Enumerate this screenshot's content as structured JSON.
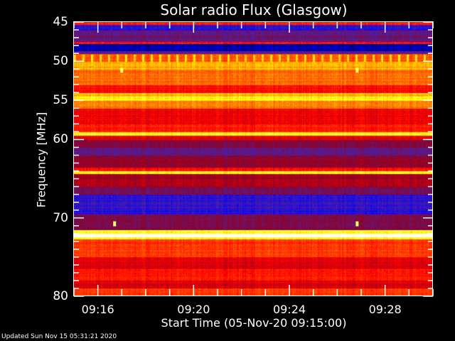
{
  "chart_data": {
    "type": "heatmap",
    "title": "Solar radio Flux (Glasgow)",
    "xlabel": "Start Time (05-Nov-20 09:15:00)",
    "ylabel": "Frequency [MHz]",
    "x_range": [
      "09:15:00",
      "09:30:00"
    ],
    "ylim": [
      45,
      80
    ],
    "y_inverted": true,
    "x_ticks": [
      "09:16",
      "09:20",
      "09:24",
      "09:28"
    ],
    "y_ticks": [
      45,
      50,
      55,
      60,
      70,
      80
    ],
    "colormap": [
      "#000040",
      "#0000ff",
      "#5020a0",
      "#900020",
      "#ff0000",
      "#ff7000",
      "#ffff00",
      "#ffffff"
    ],
    "frequency_profile": [
      [
        45.0,
        45.3,
        0.6
      ],
      [
        45.3,
        46.0,
        0.22
      ],
      [
        46.0,
        47.5,
        0.33
      ],
      [
        47.5,
        47.8,
        0.58
      ],
      [
        47.8,
        48.7,
        0.08
      ],
      [
        48.7,
        49.0,
        0.3
      ],
      [
        49.0,
        50.0,
        0.68
      ],
      [
        50.0,
        51.0,
        0.78
      ],
      [
        51.0,
        53.0,
        0.7
      ],
      [
        53.0,
        54.0,
        0.58
      ],
      [
        54.0,
        54.5,
        0.78
      ],
      [
        54.5,
        55.0,
        0.86
      ],
      [
        55.0,
        56.0,
        0.72
      ],
      [
        56.0,
        58.0,
        0.55
      ],
      [
        58.0,
        59.0,
        0.6
      ],
      [
        59.0,
        59.5,
        0.86
      ],
      [
        59.5,
        60.0,
        0.55
      ],
      [
        60.0,
        61.0,
        0.4
      ],
      [
        61.0,
        62.0,
        0.32
      ],
      [
        62.0,
        63.5,
        0.42
      ],
      [
        63.5,
        64.0,
        0.58
      ],
      [
        64.0,
        64.4,
        0.86
      ],
      [
        64.4,
        66.0,
        0.45
      ],
      [
        66.0,
        67.0,
        0.36
      ],
      [
        67.0,
        69.5,
        0.22
      ],
      [
        69.5,
        71.5,
        0.38
      ],
      [
        71.5,
        72.0,
        0.86
      ],
      [
        72.0,
        72.4,
        1.0
      ],
      [
        72.4,
        72.7,
        0.85
      ],
      [
        72.7,
        75.0,
        0.64
      ],
      [
        75.0,
        76.5,
        0.52
      ],
      [
        76.5,
        78.0,
        0.6
      ],
      [
        78.0,
        79.0,
        0.52
      ],
      [
        79.0,
        80.0,
        0.64
      ]
    ],
    "bursts": [
      {
        "time": "09:17:00",
        "freq": 51.2
      },
      {
        "time": "09:26:50",
        "freq": 51.2
      },
      {
        "time": "09:16:42",
        "freq": 70.8
      },
      {
        "time": "09:26:50",
        "freq": 70.8
      }
    ]
  },
  "footer": {
    "updated": "Updated Sun Nov 15 05:31:21 2020"
  }
}
